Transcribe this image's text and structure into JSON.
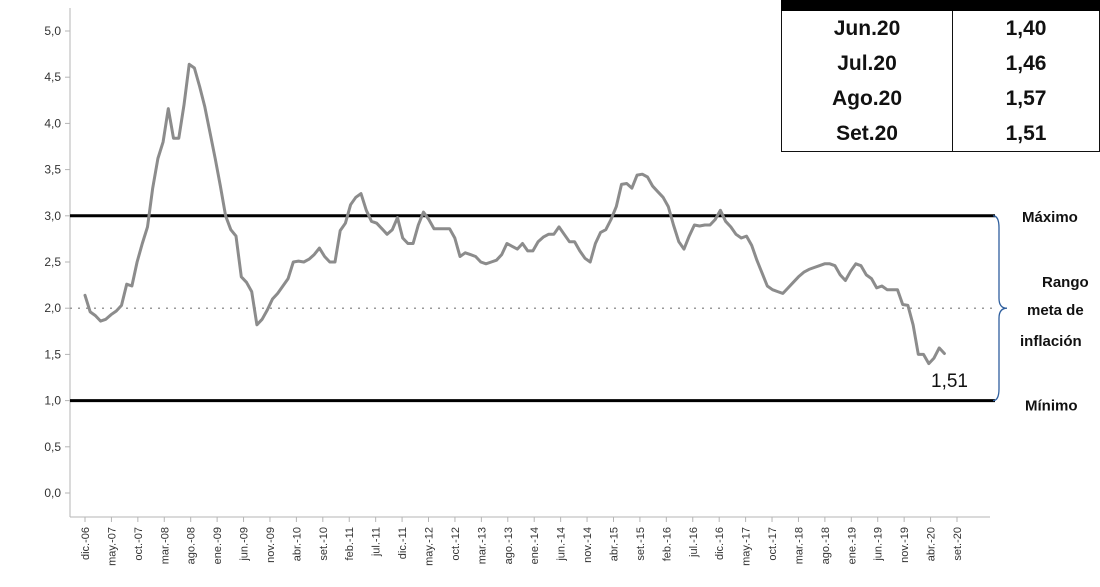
{
  "chart_data": {
    "type": "line",
    "yticks": [
      "0,0",
      "0,5",
      "1,0",
      "1,5",
      "2,0",
      "2,5",
      "3,0",
      "3,5",
      "4,0",
      "4,5",
      "5,0"
    ],
    "ylim": [
      0,
      5.2
    ],
    "xticks": [
      "dic.-06",
      "may.-07",
      "oct.-07",
      "mar.-08",
      "ago.-08",
      "ene.-09",
      "jun.-09",
      "nov.-09",
      "abr.-10",
      "set.-10",
      "feb.-11",
      "jul.-11",
      "dic.-11",
      "may.-12",
      "oct.-12",
      "mar.-13",
      "ago.-13",
      "ene.-14",
      "jun.-14",
      "nov.-14",
      "abr.-15",
      "set.-15",
      "feb.-16",
      "jul.-16",
      "dic.-16",
      "may.-17",
      "oct.-17",
      "mar.-18",
      "ago.-18",
      "ene.-19",
      "jun.-19",
      "nov.-19",
      "abr.-20",
      "set.-20"
    ],
    "series": [
      {
        "color": "#8c8c8c",
        "values": [
          2.14,
          1.96,
          1.92,
          1.86,
          1.88,
          1.93,
          1.97,
          2.03,
          2.26,
          2.24,
          2.5,
          2.7,
          2.88,
          3.3,
          3.62,
          3.8,
          4.16,
          3.84,
          3.84,
          4.2,
          4.64,
          4.6,
          4.4,
          4.18,
          3.9,
          3.62,
          3.32,
          3.0,
          2.85,
          2.78,
          2.34,
          2.28,
          2.18,
          1.82,
          1.88,
          1.98,
          2.1,
          2.16,
          2.24,
          2.32,
          2.5,
          2.51,
          2.5,
          2.53,
          2.58,
          2.65,
          2.56,
          2.5,
          2.5,
          2.84,
          2.92,
          3.12,
          3.2,
          3.24,
          3.06,
          2.94,
          2.92,
          2.86,
          2.8,
          2.85,
          2.98,
          2.76,
          2.7,
          2.7,
          2.9,
          3.04,
          2.96,
          2.86,
          2.86,
          2.86,
          2.86,
          2.76,
          2.56,
          2.6,
          2.58,
          2.56,
          2.5,
          2.48,
          2.5,
          2.52,
          2.58,
          2.7,
          2.67,
          2.64,
          2.7,
          2.62,
          2.62,
          2.72,
          2.77,
          2.8,
          2.8,
          2.88,
          2.8,
          2.72,
          2.72,
          2.62,
          2.54,
          2.5,
          2.7,
          2.82,
          2.85,
          2.96,
          3.1,
          3.34,
          3.35,
          3.3,
          3.44,
          3.45,
          3.42,
          3.32,
          3.26,
          3.2,
          3.1,
          2.9,
          2.72,
          2.64,
          2.78,
          2.9,
          2.89,
          2.9,
          2.9,
          2.96,
          3.06,
          2.94,
          2.88,
          2.8,
          2.76,
          2.78,
          2.68,
          2.52,
          2.38,
          2.24,
          2.2,
          2.18,
          2.16,
          2.22,
          2.28,
          2.34,
          2.39,
          2.42,
          2.44,
          2.46,
          2.48,
          2.48,
          2.46,
          2.36,
          2.3,
          2.4,
          2.48,
          2.46,
          2.36,
          2.32,
          2.22,
          2.24,
          2.2,
          2.2,
          2.2,
          2.04,
          2.03,
          1.82,
          1.5,
          1.5,
          1.4,
          1.46,
          1.57,
          1.51
        ]
      }
    ],
    "bands": [
      {
        "value": 3.0,
        "label": "Máximo"
      },
      {
        "value": 1.0,
        "label": "Mínimo"
      }
    ],
    "target": {
      "value": 2.0
    },
    "range_label": [
      "Rango",
      "meta de",
      "inflación"
    ],
    "end_label": "1,51",
    "inset_table": [
      [
        "Jun.20",
        "1,40"
      ],
      [
        "Jul.20",
        "1,46"
      ],
      [
        "Ago.20",
        "1,57"
      ],
      [
        "Set.20",
        "1,51"
      ]
    ]
  }
}
